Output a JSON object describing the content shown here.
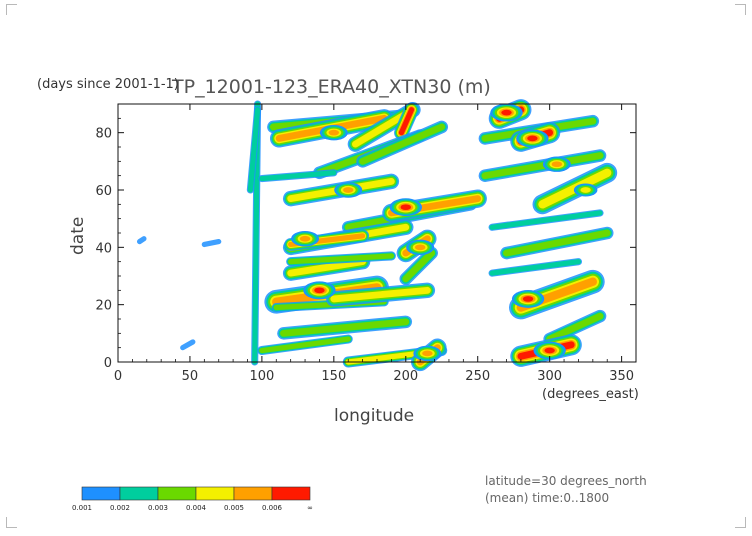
{
  "header": {
    "title": "TP_12001-123_ERA40_XTN30 (m)",
    "units_note": "(days since 2001-1-1)"
  },
  "footer": {
    "line1": "latitude=30 degrees_north",
    "line2": "(mean) time:0..1800"
  },
  "colors": {
    "levels": [
      "#1e90ff",
      "#00ce9e",
      "#6ad900",
      "#f4f000",
      "#ffa000",
      "#ff1a00"
    ]
  },
  "chart_data": {
    "type": "heatmap",
    "title": "TP_12001-123_ERA40_XTN30 (m)",
    "xlabel": "longitude",
    "xunits": "(degrees_east)",
    "ylabel": "date",
    "yunits": "(days since 2001-1-1)",
    "xlim": [
      0,
      360
    ],
    "ylim": [
      0,
      90
    ],
    "xticks": [
      0,
      50,
      100,
      150,
      200,
      250,
      300,
      350
    ],
    "yticks": [
      0,
      20,
      40,
      60,
      80
    ],
    "colorbar": {
      "labels": [
        "0.001",
        "0.002",
        "0.003",
        "0.004",
        "0.005",
        "0.006",
        "∞"
      ],
      "colors": [
        "#1e90ff",
        "#00ce9e",
        "#6ad900",
        "#f4f000",
        "#ffa000",
        "#ff1a00"
      ]
    },
    "features": [
      {
        "x0": 95,
        "x1": 97,
        "y0": 0,
        "y1": 90,
        "level": 2,
        "w": 2
      },
      {
        "x0": 92,
        "x1": 97,
        "y0": 60,
        "y1": 88,
        "level": 2,
        "w": 2
      },
      {
        "x0": 108,
        "x1": 200,
        "y0": 82,
        "y1": 86,
        "level": 3,
        "w": 3
      },
      {
        "x0": 112,
        "x1": 185,
        "y0": 78,
        "y1": 85,
        "level": 5,
        "w": 3
      },
      {
        "x0": 165,
        "x1": 205,
        "y0": 76,
        "y1": 88,
        "level": 4,
        "w": 3
      },
      {
        "x0": 197,
        "x1": 204,
        "y0": 80,
        "y1": 88,
        "level": 6,
        "w": 2
      },
      {
        "x0": 140,
        "x1": 210,
        "y0": 66,
        "y1": 79,
        "level": 3,
        "w": 3
      },
      {
        "x0": 170,
        "x1": 225,
        "y0": 70,
        "y1": 82,
        "level": 3,
        "w": 3
      },
      {
        "x0": 120,
        "x1": 190,
        "y0": 57,
        "y1": 63,
        "level": 4,
        "w": 3
      },
      {
        "x0": 100,
        "x1": 150,
        "y0": 64,
        "y1": 66,
        "level": 2,
        "w": 2
      },
      {
        "x0": 160,
        "x1": 245,
        "y0": 47,
        "y1": 55,
        "level": 3,
        "w": 3
      },
      {
        "x0": 190,
        "x1": 250,
        "y0": 52,
        "y1": 57,
        "level": 5,
        "w": 3
      },
      {
        "x0": 120,
        "x1": 200,
        "y0": 40,
        "y1": 47,
        "level": 4,
        "w": 3
      },
      {
        "x0": 120,
        "x1": 170,
        "y0": 41,
        "y1": 44,
        "level": 5,
        "w": 2
      },
      {
        "x0": 200,
        "x1": 215,
        "y0": 38,
        "y1": 43,
        "level": 5,
        "w": 3
      },
      {
        "x0": 200,
        "x1": 218,
        "y0": 29,
        "y1": 38,
        "level": 3,
        "w": 3
      },
      {
        "x0": 120,
        "x1": 170,
        "y0": 31,
        "y1": 35,
        "level": 4,
        "w": 3
      },
      {
        "x0": 120,
        "x1": 190,
        "y0": 35,
        "y1": 37,
        "level": 3,
        "w": 2
      },
      {
        "x0": 110,
        "x1": 180,
        "y0": 21,
        "y1": 26,
        "level": 5,
        "w": 4
      },
      {
        "x0": 110,
        "x1": 185,
        "y0": 19,
        "y1": 21,
        "level": 3,
        "w": 2
      },
      {
        "x0": 150,
        "x1": 215,
        "y0": 22,
        "y1": 25,
        "level": 4,
        "w": 3
      },
      {
        "x0": 115,
        "x1": 200,
        "y0": 10,
        "y1": 14,
        "level": 3,
        "w": 3
      },
      {
        "x0": 100,
        "x1": 160,
        "y0": 4,
        "y1": 8,
        "level": 3,
        "w": 2
      },
      {
        "x0": 160,
        "x1": 225,
        "y0": 0,
        "y1": 4,
        "level": 4,
        "w": 2
      },
      {
        "x0": 255,
        "x1": 330,
        "y0": 78,
        "y1": 84,
        "level": 3,
        "w": 3
      },
      {
        "x0": 265,
        "x1": 280,
        "y0": 85,
        "y1": 88,
        "level": 6,
        "w": 3
      },
      {
        "x0": 280,
        "x1": 300,
        "y0": 77,
        "y1": 80,
        "level": 6,
        "w": 3
      },
      {
        "x0": 255,
        "x1": 335,
        "y0": 65,
        "y1": 72,
        "level": 3,
        "w": 3
      },
      {
        "x0": 295,
        "x1": 340,
        "y0": 55,
        "y1": 66,
        "level": 4,
        "w": 4
      },
      {
        "x0": 260,
        "x1": 335,
        "y0": 47,
        "y1": 52,
        "level": 2,
        "w": 2
      },
      {
        "x0": 270,
        "x1": 340,
        "y0": 38,
        "y1": 45,
        "level": 3,
        "w": 3
      },
      {
        "x0": 260,
        "x1": 320,
        "y0": 31,
        "y1": 35,
        "level": 2,
        "w": 2
      },
      {
        "x0": 280,
        "x1": 330,
        "y0": 19,
        "y1": 28,
        "level": 5,
        "w": 4
      },
      {
        "x0": 300,
        "x1": 335,
        "y0": 8,
        "y1": 16,
        "level": 3,
        "w": 3
      },
      {
        "x0": 280,
        "x1": 315,
        "y0": 2,
        "y1": 6,
        "level": 6,
        "w": 3
      },
      {
        "x0": 210,
        "x1": 222,
        "y0": 0,
        "y1": 5,
        "level": 5,
        "w": 3
      },
      {
        "x0": 45,
        "x1": 52,
        "y0": 5,
        "y1": 7,
        "level": 1,
        "w": 2
      },
      {
        "x0": 60,
        "x1": 70,
        "y0": 41,
        "y1": 42,
        "level": 1,
        "w": 2
      },
      {
        "x0": 15,
        "x1": 18,
        "y0": 42,
        "y1": 43,
        "level": 1,
        "w": 2
      }
    ],
    "hotspots": [
      {
        "x": 140,
        "y": 25,
        "level": 6
      },
      {
        "x": 150,
        "y": 80,
        "level": 5
      },
      {
        "x": 200,
        "y": 54,
        "level": 6
      },
      {
        "x": 270,
        "y": 87,
        "level": 6
      },
      {
        "x": 288,
        "y": 78,
        "level": 6
      },
      {
        "x": 300,
        "y": 4,
        "level": 6
      },
      {
        "x": 285,
        "y": 22,
        "level": 6
      },
      {
        "x": 130,
        "y": 43,
        "level": 5
      },
      {
        "x": 210,
        "y": 40,
        "level": 5
      },
      {
        "x": 215,
        "y": 3,
        "level": 5
      },
      {
        "x": 305,
        "y": 69,
        "level": 5
      },
      {
        "x": 325,
        "y": 60,
        "level": 4
      },
      {
        "x": 160,
        "y": 60,
        "level": 5
      }
    ]
  }
}
